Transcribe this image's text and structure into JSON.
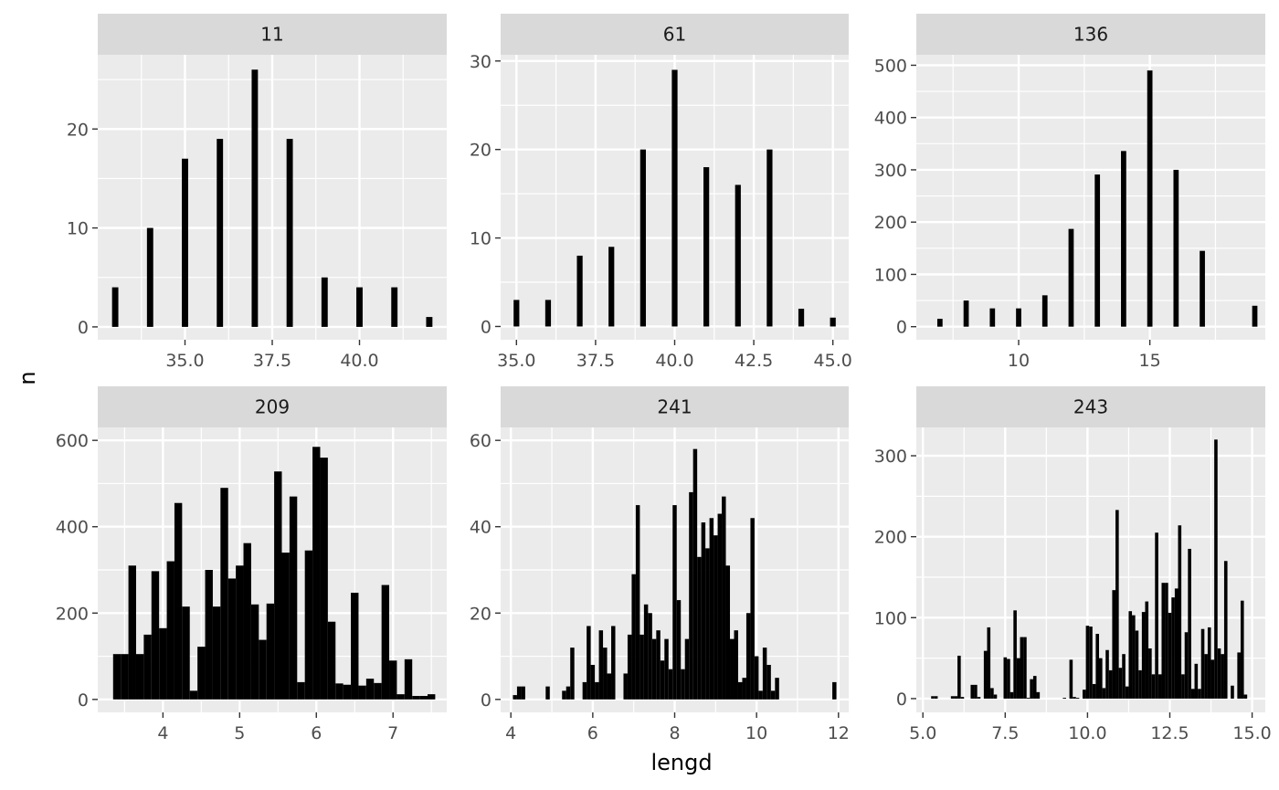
{
  "chart_data": {
    "type": "bar",
    "xlabel": "lengd",
    "ylabel": "n",
    "grid": true,
    "facets": [
      {
        "strip": "11",
        "xlim": [
          32.5,
          42.5
        ],
        "ylim": [
          -1.3,
          27.5
        ],
        "xticks": [
          35,
          37.5,
          40
        ],
        "xtick_labels": [
          "35.0",
          "37.5",
          "40.0"
        ],
        "xminor": [
          33.75,
          36.25,
          38.75,
          41.25
        ],
        "yticks": [
          0,
          10,
          20
        ],
        "yminor": [
          5,
          15,
          25
        ],
        "bar_width": 0.18,
        "bars": [
          [
            33,
            4
          ],
          [
            34,
            10
          ],
          [
            35,
            17
          ],
          [
            36,
            19
          ],
          [
            37,
            26
          ],
          [
            38,
            19
          ],
          [
            39,
            5
          ],
          [
            40,
            4
          ],
          [
            41,
            4
          ],
          [
            42,
            1
          ]
        ]
      },
      {
        "strip": "61",
        "xlim": [
          34.5,
          45.5
        ],
        "ylim": [
          -1.5,
          30.7
        ],
        "xticks": [
          35,
          37.5,
          40,
          42.5,
          45
        ],
        "xtick_labels": [
          "35.0",
          "37.5",
          "40.0",
          "42.5",
          "45.0"
        ],
        "xminor": [
          36.25,
          38.75,
          41.25,
          43.75
        ],
        "yticks": [
          0,
          10,
          20,
          30
        ],
        "yminor": [
          5,
          15,
          25
        ],
        "bar_width": 0.18,
        "bars": [
          [
            35,
            3
          ],
          [
            36,
            3
          ],
          [
            37,
            8
          ],
          [
            38,
            9
          ],
          [
            39,
            20
          ],
          [
            40,
            29
          ],
          [
            41,
            18
          ],
          [
            42,
            16
          ],
          [
            43,
            20
          ],
          [
            44,
            2
          ],
          [
            45,
            1
          ]
        ]
      },
      {
        "strip": "136",
        "xlim": [
          6.1,
          19.4
        ],
        "ylim": [
          -25,
          520
        ],
        "xticks": [
          10,
          15
        ],
        "xtick_labels": [
          "10",
          "15"
        ],
        "xminor": [
          7.5,
          12.5,
          17.5
        ],
        "yticks": [
          0,
          100,
          200,
          300,
          400,
          500
        ],
        "yminor": [
          50,
          150,
          250,
          350,
          450
        ],
        "bar_width": 0.2,
        "bars": [
          [
            7,
            15
          ],
          [
            8,
            50
          ],
          [
            9,
            35
          ],
          [
            10,
            35
          ],
          [
            11,
            60
          ],
          [
            12,
            187
          ],
          [
            13,
            291
          ],
          [
            14,
            336
          ],
          [
            15,
            490
          ],
          [
            16,
            300
          ],
          [
            17,
            145
          ],
          [
            19,
            40
          ]
        ]
      },
      {
        "strip": "209",
        "xlim": [
          3.15,
          7.7
        ],
        "ylim": [
          -30,
          630
        ],
        "xticks": [
          4,
          5,
          6,
          7
        ],
        "xtick_labels": [
          "4",
          "5",
          "6",
          "7"
        ],
        "xminor": [
          3.5,
          4.5,
          5.5,
          6.5,
          7.5
        ],
        "yticks": [
          0,
          200,
          400,
          600
        ],
        "yminor": [
          100,
          300,
          500
        ],
        "bar_width": 0.1,
        "bars": [
          [
            3.4,
            105
          ],
          [
            3.5,
            105
          ],
          [
            3.6,
            310
          ],
          [
            3.7,
            105
          ],
          [
            3.8,
            150
          ],
          [
            3.9,
            297
          ],
          [
            4.0,
            165
          ],
          [
            4.1,
            320
          ],
          [
            4.2,
            455
          ],
          [
            4.3,
            215
          ],
          [
            4.4,
            20
          ],
          [
            4.5,
            122
          ],
          [
            4.6,
            300
          ],
          [
            4.7,
            215
          ],
          [
            4.8,
            490
          ],
          [
            4.9,
            280
          ],
          [
            5.0,
            310
          ],
          [
            5.1,
            362
          ],
          [
            5.2,
            220
          ],
          [
            5.3,
            138
          ],
          [
            5.4,
            222
          ],
          [
            5.5,
            528
          ],
          [
            5.6,
            340
          ],
          [
            5.7,
            470
          ],
          [
            5.8,
            40
          ],
          [
            5.9,
            345
          ],
          [
            6.0,
            585
          ],
          [
            6.1,
            560
          ],
          [
            6.2,
            180
          ],
          [
            6.3,
            37
          ],
          [
            6.4,
            34
          ],
          [
            6.5,
            247
          ],
          [
            6.6,
            32
          ],
          [
            6.7,
            48
          ],
          [
            6.8,
            38
          ],
          [
            6.9,
            265
          ],
          [
            7.0,
            90
          ],
          [
            7.1,
            12
          ],
          [
            7.2,
            93
          ],
          [
            7.3,
            8
          ],
          [
            7.4,
            8
          ],
          [
            7.5,
            12
          ]
        ]
      },
      {
        "strip": "241",
        "xlim": [
          3.75,
          12.25
        ],
        "ylim": [
          -3,
          63
        ],
        "xticks": [
          4,
          6,
          8,
          10,
          12
        ],
        "xtick_labels": [
          "4",
          "6",
          "8",
          "10",
          "12"
        ],
        "xminor": [
          5,
          7,
          9,
          11
        ],
        "yticks": [
          0,
          20,
          40,
          60
        ],
        "yminor": [
          10,
          30,
          50
        ],
        "bar_width": 0.1,
        "bars": [
          [
            4.1,
            1
          ],
          [
            4.2,
            3
          ],
          [
            4.3,
            3
          ],
          [
            4.9,
            3
          ],
          [
            5.3,
            2
          ],
          [
            5.4,
            3
          ],
          [
            5.5,
            12
          ],
          [
            5.8,
            4
          ],
          [
            5.9,
            17
          ],
          [
            6.0,
            8
          ],
          [
            6.1,
            4
          ],
          [
            6.2,
            16
          ],
          [
            6.3,
            12
          ],
          [
            6.4,
            6
          ],
          [
            6.5,
            17
          ],
          [
            6.8,
            6
          ],
          [
            6.9,
            15
          ],
          [
            7.0,
            29
          ],
          [
            7.1,
            45
          ],
          [
            7.2,
            15
          ],
          [
            7.3,
            22
          ],
          [
            7.4,
            20
          ],
          [
            7.5,
            14
          ],
          [
            7.6,
            16
          ],
          [
            7.7,
            9
          ],
          [
            7.8,
            14
          ],
          [
            7.9,
            7
          ],
          [
            8.0,
            45
          ],
          [
            8.1,
            23
          ],
          [
            8.2,
            7
          ],
          [
            8.3,
            14
          ],
          [
            8.4,
            48
          ],
          [
            8.5,
            58
          ],
          [
            8.6,
            33
          ],
          [
            8.7,
            41
          ],
          [
            8.8,
            35
          ],
          [
            8.9,
            42
          ],
          [
            9.0,
            38
          ],
          [
            9.1,
            43
          ],
          [
            9.2,
            47
          ],
          [
            9.3,
            31
          ],
          [
            9.4,
            14
          ],
          [
            9.5,
            16
          ],
          [
            9.6,
            4
          ],
          [
            9.7,
            5
          ],
          [
            9.8,
            20
          ],
          [
            9.9,
            42
          ],
          [
            10.0,
            10
          ],
          [
            10.1,
            2
          ],
          [
            10.2,
            12
          ],
          [
            10.3,
            8
          ],
          [
            10.4,
            2
          ],
          [
            10.5,
            5
          ],
          [
            11.9,
            4
          ]
        ]
      },
      {
        "strip": "243",
        "xlim": [
          4.8,
          15.4
        ],
        "ylim": [
          -17,
          335
        ],
        "xticks": [
          5,
          7.5,
          10,
          12.5,
          15
        ],
        "xtick_labels": [
          "5.0",
          "7.5",
          "10.0",
          "12.5",
          "15.0"
        ],
        "xminor": [
          6.25,
          8.75,
          11.25,
          13.75
        ],
        "yticks": [
          0,
          100,
          200,
          300
        ],
        "yminor": [
          50,
          150,
          250
        ],
        "bar_width": 0.1,
        "bars": [
          [
            5.3,
            3
          ],
          [
            5.4,
            3
          ],
          [
            5.9,
            3
          ],
          [
            6.0,
            3
          ],
          [
            6.1,
            53
          ],
          [
            6.2,
            2
          ],
          [
            6.5,
            17
          ],
          [
            6.6,
            17
          ],
          [
            6.7,
            2
          ],
          [
            6.9,
            59
          ],
          [
            7.0,
            88
          ],
          [
            7.1,
            13
          ],
          [
            7.2,
            5
          ],
          [
            7.5,
            51
          ],
          [
            7.6,
            49
          ],
          [
            7.7,
            8
          ],
          [
            7.8,
            109
          ],
          [
            7.9,
            50
          ],
          [
            8.0,
            76
          ],
          [
            8.1,
            76
          ],
          [
            8.2,
            1
          ],
          [
            8.3,
            24
          ],
          [
            8.4,
            28
          ],
          [
            8.5,
            8
          ],
          [
            9.3,
            1
          ],
          [
            9.5,
            48
          ],
          [
            9.6,
            2
          ],
          [
            9.7,
            1
          ],
          [
            9.9,
            11
          ],
          [
            10.0,
            90
          ],
          [
            10.1,
            89
          ],
          [
            10.2,
            18
          ],
          [
            10.3,
            80
          ],
          [
            10.4,
            50
          ],
          [
            10.5,
            13
          ],
          [
            10.6,
            60
          ],
          [
            10.7,
            35
          ],
          [
            10.8,
            134
          ],
          [
            10.9,
            233
          ],
          [
            11.0,
            38
          ],
          [
            11.1,
            55
          ],
          [
            11.2,
            15
          ],
          [
            11.3,
            108
          ],
          [
            11.4,
            103
          ],
          [
            11.5,
            84
          ],
          [
            11.6,
            35
          ],
          [
            11.7,
            107
          ],
          [
            11.8,
            120
          ],
          [
            11.9,
            62
          ],
          [
            12.0,
            30
          ],
          [
            12.1,
            205
          ],
          [
            12.2,
            30
          ],
          [
            12.3,
            143
          ],
          [
            12.4,
            143
          ],
          [
            12.5,
            106
          ],
          [
            12.6,
            125
          ],
          [
            12.7,
            136
          ],
          [
            12.8,
            214
          ],
          [
            12.9,
            30
          ],
          [
            13.0,
            82
          ],
          [
            13.1,
            185
          ],
          [
            13.2,
            12
          ],
          [
            13.3,
            43
          ],
          [
            13.4,
            12
          ],
          [
            13.5,
            86
          ],
          [
            13.6,
            55
          ],
          [
            13.7,
            88
          ],
          [
            13.8,
            48
          ],
          [
            13.9,
            320
          ],
          [
            14.0,
            62
          ],
          [
            14.1,
            55
          ],
          [
            14.2,
            170
          ],
          [
            14.4,
            16
          ],
          [
            14.6,
            57
          ],
          [
            14.7,
            121
          ],
          [
            14.8,
            5
          ]
        ]
      }
    ]
  }
}
